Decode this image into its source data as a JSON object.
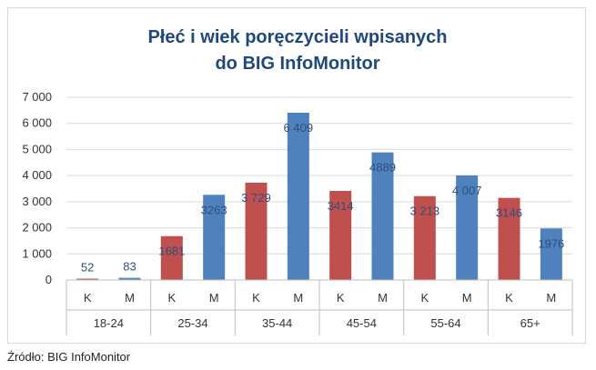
{
  "chart_data": {
    "type": "bar",
    "title": [
      "Płeć i wiek poręczycieli wpisanych",
      "do BIG InfoMonitor"
    ],
    "groups": [
      "18-24",
      "25-34",
      "35-44",
      "45-54",
      "55-64",
      "65+"
    ],
    "sub_categories": [
      "K",
      "M"
    ],
    "series": [
      {
        "name": "K",
        "color": "#c0504d",
        "values": [
          52,
          1681,
          3729,
          3414,
          3213,
          3146
        ],
        "labels": [
          "52",
          "1681",
          "3 729",
          "3414",
          "3 213",
          "3146"
        ]
      },
      {
        "name": "M",
        "color": "#4f81bd",
        "values": [
          83,
          3263,
          6409,
          4889,
          4007,
          1976
        ],
        "labels": [
          "83",
          "3263",
          "6 409",
          "4889",
          "4 007",
          "1976"
        ]
      }
    ],
    "ylim": [
      0,
      7000
    ],
    "yticks": [
      0,
      1000,
      2000,
      3000,
      4000,
      5000,
      6000,
      7000
    ],
    "ytick_labels": [
      "0",
      "1 000",
      "2 000",
      "3 000",
      "4 000",
      "5 000",
      "6 000",
      "7 000"
    ],
    "grid": true,
    "legend": "none"
  },
  "source": "Źródło: BIG InfoMonitor"
}
